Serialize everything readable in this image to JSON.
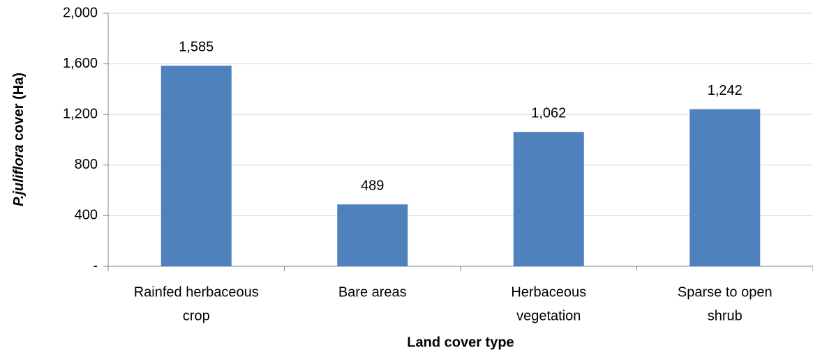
{
  "chart_data": {
    "type": "bar",
    "x_label": "Land cover type",
    "y_label": "P.juliflora cover (Ha)",
    "categories": [
      [
        "Rainfed herbaceous",
        "crop"
      ],
      [
        "Bare areas"
      ],
      [
        "Herbaceous",
        "vegetation"
      ],
      [
        "Sparse to open",
        "shrub"
      ]
    ],
    "values": [
      1585,
      489,
      1062,
      1242
    ],
    "value_labels": [
      "1,585",
      "489",
      "1,062",
      "1,242"
    ],
    "color": "#4f81bd",
    "ylim": [
      0,
      2000
    ],
    "yticks": [
      {
        "value": 0,
        "label": "-"
      },
      400,
      800,
      {
        "value": 1200,
        "label": "1,200"
      },
      {
        "value": 1600,
        "label": "1,600"
      },
      {
        "value": 2000,
        "label": "2,000"
      }
    ],
    "grid": true
  }
}
